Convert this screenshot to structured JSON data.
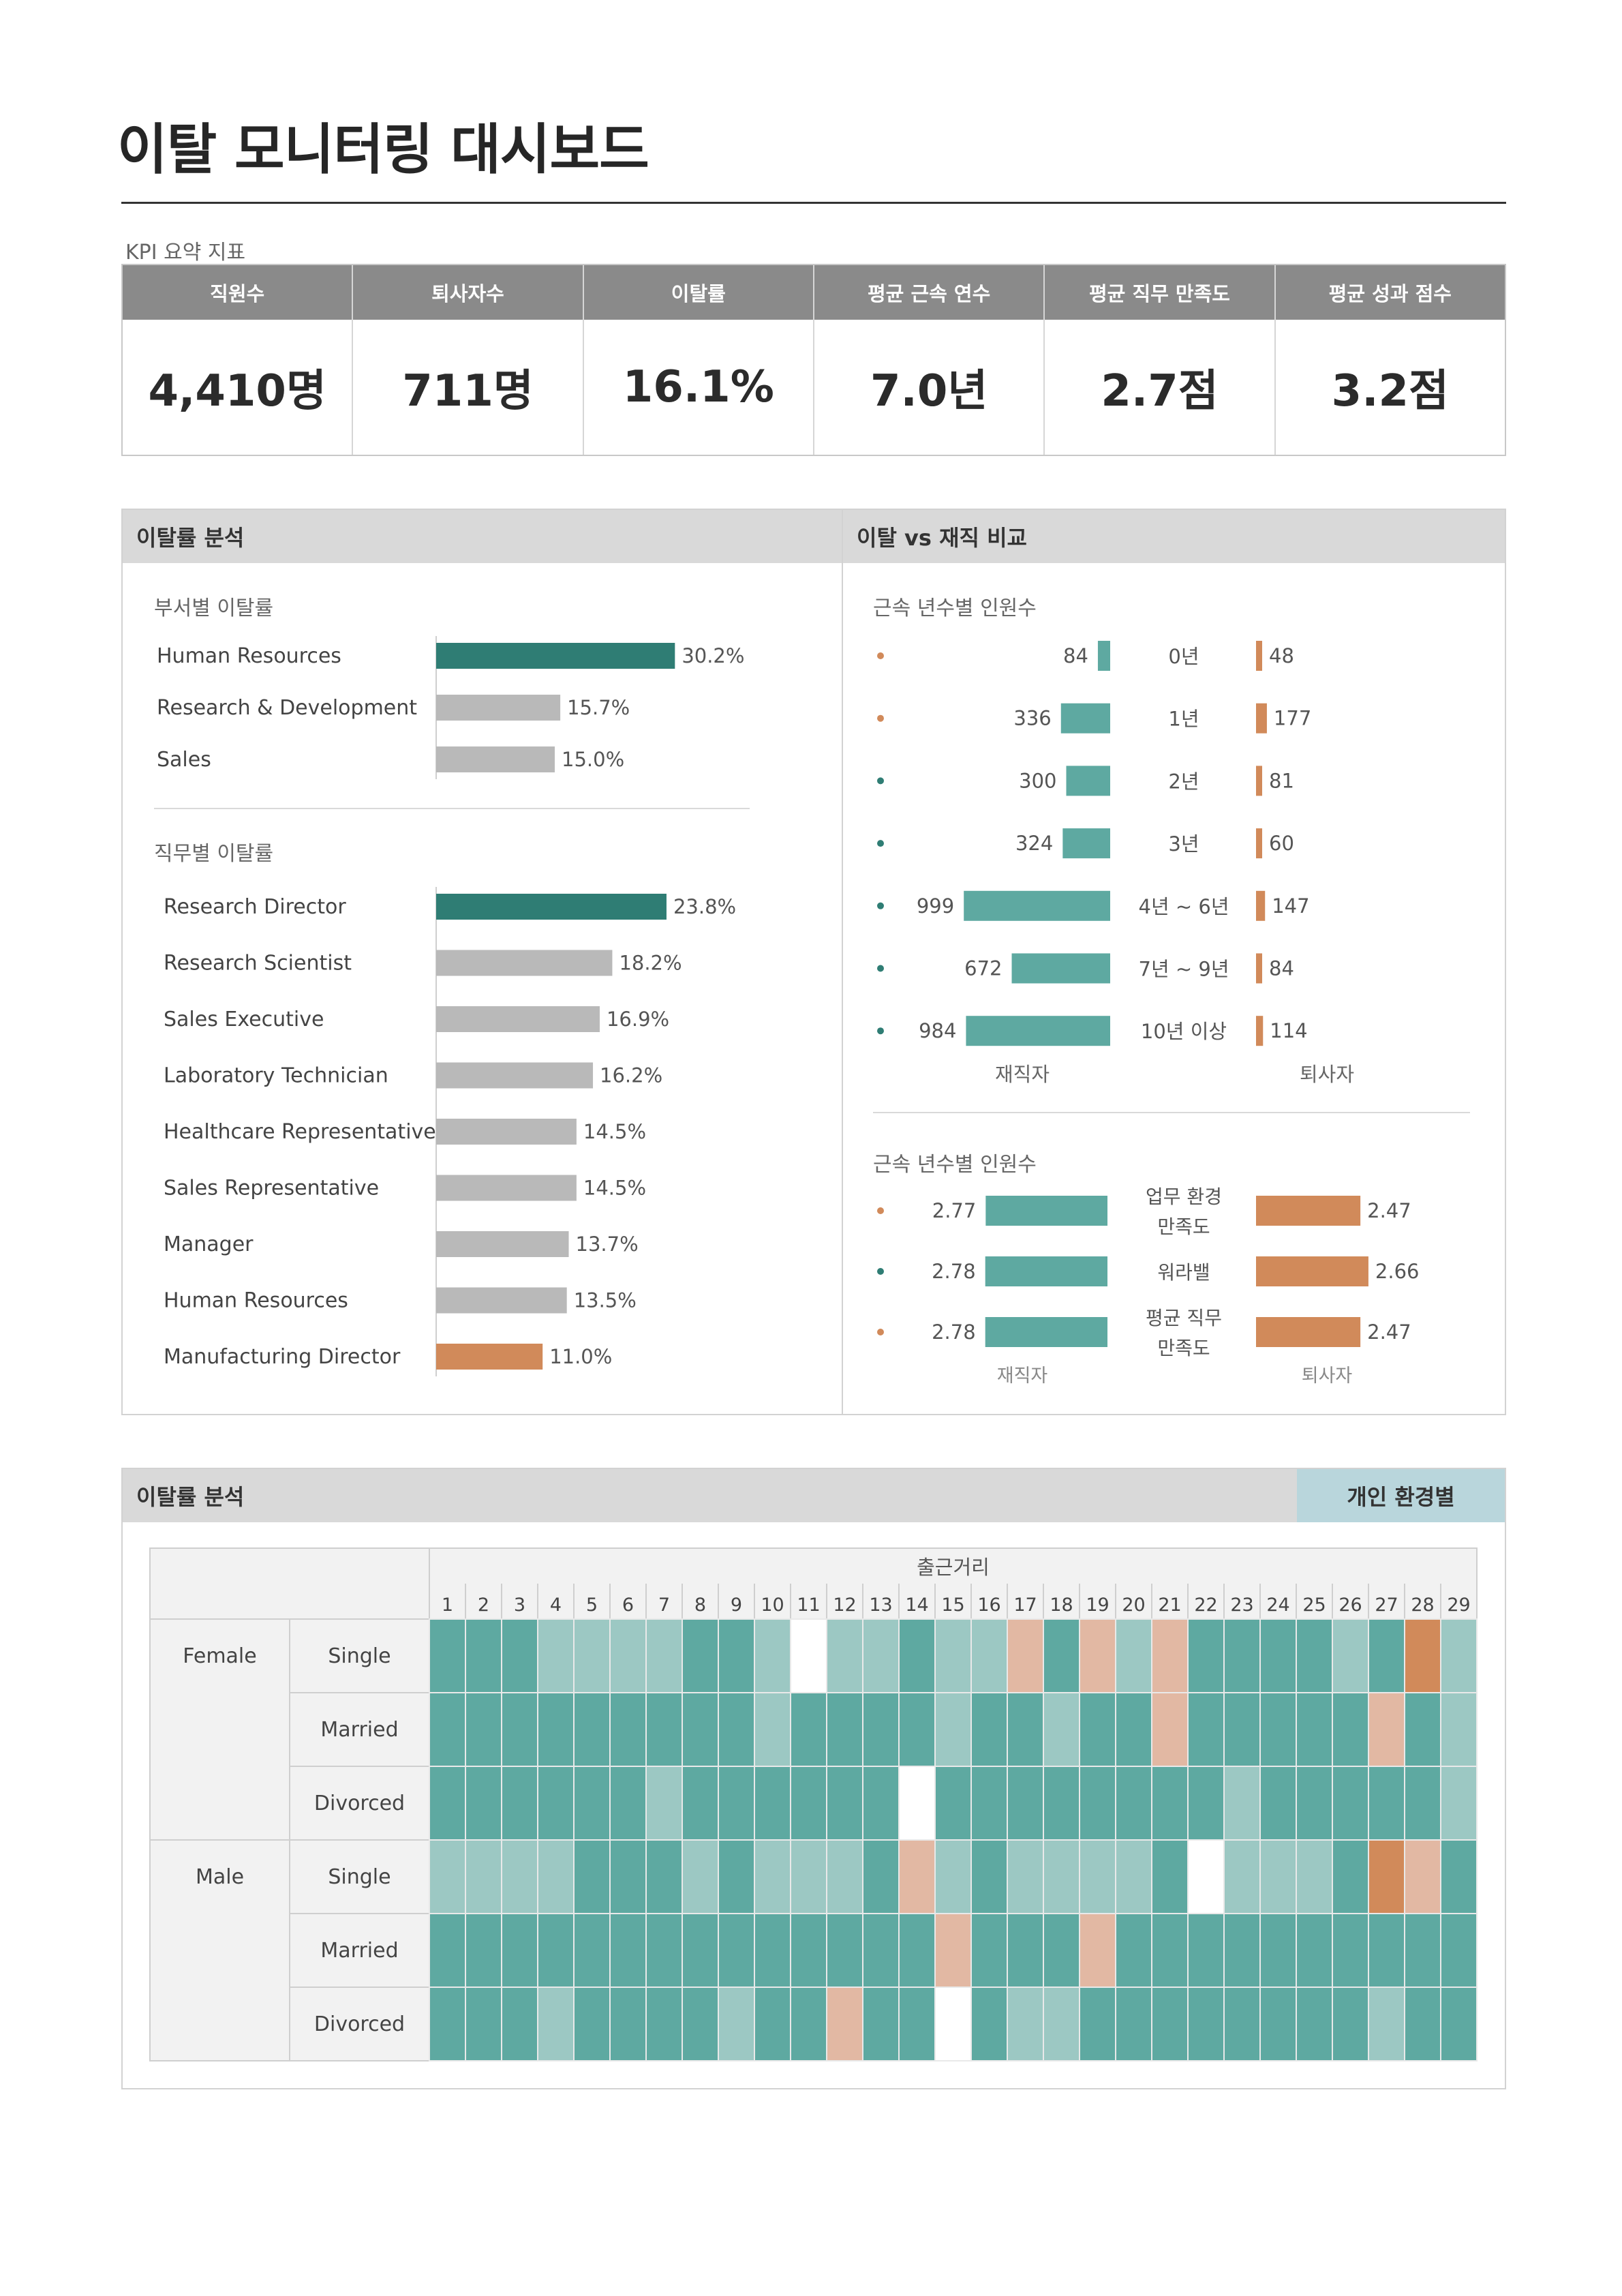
{
  "title": "이탈 모니터링 대시보드",
  "colors": {
    "teal_dark": "#2f7d74",
    "teal": "#5ea9a1",
    "teal_light": "#9cc8c3",
    "orange": "#d18a5a",
    "orange_light": "#e2b8a3",
    "gray_bar": "#b9b9b9",
    "header_gray": "#8a8a8a",
    "panel_gray": "#d9d9d9",
    "tab_blue": "#b9d6dc"
  },
  "kpi": {
    "caption": "KPI 요약 지표",
    "items": [
      {
        "label": "직원수",
        "value": "4,410명"
      },
      {
        "label": "퇴사자수",
        "value": "711명"
      },
      {
        "label": "이탈률",
        "value": "16.1%"
      },
      {
        "label": "평균 근속 연수",
        "value": "7.0년"
      },
      {
        "label": "평균 직무 만족도",
        "value": "2.7점"
      },
      {
        "label": "평균 성과 점수",
        "value": "3.2점"
      }
    ]
  },
  "panel_attrition": {
    "title": "이탈률 분석"
  },
  "panel_compare": {
    "title": "이탈 vs 재직 비교"
  },
  "panel_heatmap": {
    "title": "이탈률 분석",
    "tab": "개인 환경별"
  },
  "chart_data": [
    {
      "type": "bar",
      "orientation": "horizontal",
      "title": "부서별 이탈률",
      "categories": [
        "Human Resources",
        "Research & Development",
        "Sales"
      ],
      "values": [
        30.2,
        15.7,
        15.0
      ],
      "labels": [
        "30.2%",
        "15.7%",
        "15.0%"
      ],
      "highlight": [
        "top",
        "normal",
        "normal"
      ]
    },
    {
      "type": "bar",
      "orientation": "horizontal",
      "title": "직무별 이탈률",
      "categories": [
        "Research Director",
        "Research Scientist",
        "Sales Executive",
        "Laboratory Technician",
        "Healthcare Representative",
        "Sales Representative",
        "Manager",
        "Human Resources",
        "Manufacturing Director"
      ],
      "values": [
        23.8,
        18.2,
        16.9,
        16.2,
        14.5,
        14.5,
        13.7,
        13.5,
        11.0
      ],
      "labels": [
        "23.8%",
        "18.2%",
        "16.9%",
        "16.2%",
        "14.5%",
        "14.5%",
        "13.7%",
        "13.5%",
        "11.0%"
      ],
      "highlight": [
        "top",
        "normal",
        "normal",
        "normal",
        "normal",
        "normal",
        "normal",
        "normal",
        "bottom"
      ]
    },
    {
      "type": "bar",
      "orientation": "horizontal-butterfly",
      "title": "근속 년수별 인원수",
      "categories": [
        "0년",
        "1년",
        "2년",
        "3년",
        "4년 ~ 6년",
        "7년 ~ 9년",
        "10년 이상"
      ],
      "series": [
        {
          "name": "재직자",
          "values": [
            84,
            336,
            300,
            324,
            999,
            672,
            984
          ]
        },
        {
          "name": "퇴사자",
          "values": [
            48,
            177,
            81,
            60,
            147,
            84,
            114
          ]
        }
      ],
      "value_labels": {
        "재직자": [
          "84",
          "336",
          "300",
          "324",
          "999",
          "672",
          "984"
        ],
        "퇴사자": [
          "48",
          "177",
          "81",
          "60",
          "147",
          "84",
          "114"
        ]
      },
      "markers": [
        "orange",
        "orange",
        "teal",
        "teal",
        "teal",
        "teal",
        "teal"
      ]
    },
    {
      "type": "bar",
      "orientation": "horizontal-butterfly",
      "title": "근속 년수별 인원수",
      "categories": [
        "업무 환경 만족도",
        "워라밸",
        "평균 직무 만족도"
      ],
      "category_lines": [
        [
          "업무 환경",
          "만족도"
        ],
        [
          "워라밸"
        ],
        [
          "평균 직무",
          "만족도"
        ]
      ],
      "series": [
        {
          "name": "재직자",
          "values": [
            2.77,
            2.78,
            2.78
          ]
        },
        {
          "name": "퇴사자",
          "values": [
            2.47,
            2.66,
            2.47
          ]
        }
      ],
      "value_labels": {
        "재직자": [
          "2.77",
          "2.78",
          "2.78"
        ],
        "퇴사자": [
          "2.47",
          "2.66",
          "2.47"
        ]
      },
      "markers": [
        "orange",
        "teal",
        "orange"
      ]
    },
    {
      "type": "heatmap",
      "title": "출근거리",
      "x": [
        "1",
        "2",
        "3",
        "4",
        "5",
        "6",
        "7",
        "8",
        "9",
        "10",
        "11",
        "12",
        "13",
        "14",
        "15",
        "16",
        "17",
        "18",
        "19",
        "20",
        "21",
        "22",
        "23",
        "24",
        "25",
        "26",
        "27",
        "28",
        "29"
      ],
      "groups": [
        {
          "name": "Female",
          "rows": [
            "Single",
            "Married",
            "Divorced"
          ]
        },
        {
          "name": "Male",
          "rows": [
            "Single",
            "Married",
            "Divorced"
          ]
        }
      ],
      "levels": {
        "0": "empty",
        "1": "teal",
        "2": "teal_light",
        "3": "orange_light",
        "4": "orange"
      },
      "values": [
        [
          1,
          1,
          1,
          2,
          2,
          2,
          2,
          1,
          1,
          2,
          0,
          2,
          2,
          1,
          2,
          2,
          3,
          1,
          3,
          2,
          3,
          1,
          1,
          1,
          1,
          2,
          1,
          4,
          2
        ],
        [
          1,
          1,
          1,
          1,
          1,
          1,
          1,
          1,
          1,
          2,
          1,
          1,
          1,
          1,
          2,
          1,
          1,
          2,
          1,
          1,
          3,
          1,
          1,
          1,
          1,
          1,
          3,
          1,
          2
        ],
        [
          1,
          1,
          1,
          1,
          1,
          1,
          2,
          1,
          1,
          1,
          1,
          1,
          1,
          0,
          1,
          1,
          1,
          1,
          1,
          1,
          1,
          1,
          2,
          1,
          1,
          1,
          1,
          1,
          2
        ],
        [
          2,
          2,
          2,
          2,
          1,
          1,
          1,
          2,
          1,
          2,
          2,
          2,
          1,
          3,
          2,
          1,
          2,
          2,
          2,
          2,
          1,
          0,
          2,
          2,
          2,
          1,
          4,
          3,
          1
        ],
        [
          1,
          1,
          1,
          1,
          1,
          1,
          1,
          1,
          1,
          1,
          1,
          1,
          1,
          1,
          3,
          1,
          1,
          1,
          3,
          1,
          1,
          1,
          1,
          1,
          1,
          1,
          1,
          1,
          1
        ],
        [
          1,
          1,
          1,
          2,
          1,
          1,
          1,
          1,
          2,
          1,
          1,
          3,
          1,
          1,
          0,
          1,
          2,
          2,
          1,
          1,
          1,
          1,
          1,
          1,
          1,
          1,
          2,
          1,
          1
        ]
      ]
    }
  ]
}
